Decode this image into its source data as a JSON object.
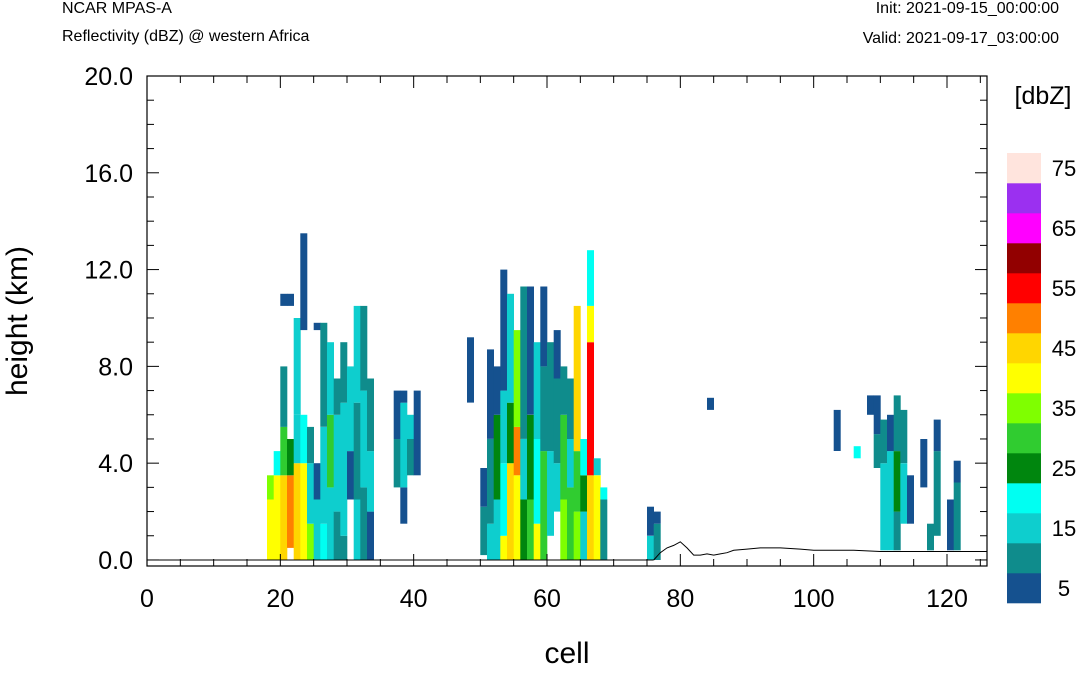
{
  "header": {
    "model": "NCAR MPAS-A",
    "field": "Reflectivity (dBZ) @ western Africa",
    "init": "Init: 2021-09-15_00:00:00",
    "valid": "Valid: 2021-09-17_03:00:00"
  },
  "chart_data": {
    "type": "heatmap",
    "xlabel": "cell",
    "ylabel": "height (km)",
    "xlim": [
      0,
      126
    ],
    "ylim": [
      -0.25,
      20.0
    ],
    "xticks": [
      "0",
      "20",
      "40",
      "60",
      "80",
      "100",
      "120"
    ],
    "yticks": [
      "0.0",
      "4.0",
      "8.0",
      "12.0",
      "16.0",
      "20.0"
    ],
    "colorbar": {
      "title": "[dbZ]",
      "labels": [
        "5",
        "15",
        "25",
        "35",
        "45",
        "55",
        "65",
        "75"
      ],
      "bins": [
        {
          "min": 0,
          "max": 10,
          "color": "#15518F"
        },
        {
          "min": 10,
          "max": 15,
          "color": "#0F8C8C"
        },
        {
          "min": 15,
          "max": 20,
          "color": "#0ECECE"
        },
        {
          "min": 20,
          "max": 25,
          "color": "#00FFF2"
        },
        {
          "min": 25,
          "max": 30,
          "color": "#00860E"
        },
        {
          "min": 30,
          "max": 35,
          "color": "#30CC30"
        },
        {
          "min": 35,
          "max": 40,
          "color": "#7FFF00"
        },
        {
          "min": 40,
          "max": 45,
          "color": "#FFFF00"
        },
        {
          "min": 45,
          "max": 50,
          "color": "#FFD600"
        },
        {
          "min": 50,
          "max": 55,
          "color": "#FF8000"
        },
        {
          "min": 55,
          "max": 60,
          "color": "#FF0000"
        },
        {
          "min": 60,
          "max": 65,
          "color": "#920000"
        },
        {
          "min": 65,
          "max": 70,
          "color": "#FF00FF"
        },
        {
          "min": 70,
          "max": 75,
          "color": "#9B30F0"
        },
        {
          "min": 75,
          "max": 80,
          "color": "#FFE4DD"
        }
      ]
    },
    "cell_height_km": 0.5,
    "columns": [
      {
        "cell": 18,
        "values": [
          {
            "z0": 0,
            "z1": 2.5,
            "dbz": 42
          },
          {
            "z0": 2.5,
            "z1": 3.5,
            "dbz": 37
          }
        ]
      },
      {
        "cell": 19,
        "values": [
          {
            "z0": 0,
            "z1": 3.5,
            "dbz": 43
          },
          {
            "z0": 3.5,
            "z1": 4.5,
            "dbz": 22
          }
        ]
      },
      {
        "cell": 20,
        "values": [
          {
            "z0": 0,
            "z1": 3.5,
            "dbz": 47
          },
          {
            "z0": 3.5,
            "z1": 5.5,
            "dbz": 32
          },
          {
            "z0": 5.5,
            "z1": 8,
            "dbz": 12
          },
          {
            "z0": 10.5,
            "z1": 11,
            "dbz": 7
          }
        ]
      },
      {
        "cell": 21,
        "values": [
          {
            "z0": 0.5,
            "z1": 3.5,
            "dbz": 52
          },
          {
            "z0": 3.5,
            "z1": 5,
            "dbz": 27
          },
          {
            "z0": 10.5,
            "z1": 11,
            "dbz": 7
          }
        ]
      },
      {
        "cell": 22,
        "values": [
          {
            "z0": 0,
            "z1": 4,
            "dbz": 47
          },
          {
            "z0": 4,
            "z1": 6,
            "dbz": 17
          },
          {
            "z0": 6,
            "z1": 10,
            "dbz": 17
          }
        ]
      },
      {
        "cell": 23,
        "values": [
          {
            "z0": 0,
            "z1": 4,
            "dbz": 42
          },
          {
            "z0": 4,
            "z1": 6,
            "dbz": 22
          },
          {
            "z0": 9.5,
            "z1": 13.5,
            "dbz": 8
          }
        ]
      },
      {
        "cell": 24,
        "values": [
          {
            "z0": 0,
            "z1": 1.5,
            "dbz": 37
          },
          {
            "z0": 1.5,
            "z1": 4,
            "dbz": 17
          },
          {
            "z0": 4,
            "z1": 5.5,
            "dbz": 12
          }
        ]
      },
      {
        "cell": 25,
        "values": [
          {
            "z0": 0,
            "z1": 2.5,
            "dbz": 17
          },
          {
            "z0": 2.5,
            "z1": 4,
            "dbz": 8
          },
          {
            "z0": 9.5,
            "z1": 9.8,
            "dbz": 7
          }
        ]
      },
      {
        "cell": 26,
        "values": [
          {
            "z0": 0,
            "z1": 1.5,
            "dbz": 22
          },
          {
            "z0": 1.5,
            "z1": 5.5,
            "dbz": 17
          },
          {
            "z0": 5.5,
            "z1": 9.8,
            "dbz": 12
          }
        ]
      },
      {
        "cell": 27,
        "values": [
          {
            "z0": 0,
            "z1": 3,
            "dbz": 17
          },
          {
            "z0": 3,
            "z1": 6,
            "dbz": 32
          },
          {
            "z0": 6,
            "z1": 9,
            "dbz": 17
          }
        ]
      },
      {
        "cell": 28,
        "values": [
          {
            "z0": 0,
            "z1": 2,
            "dbz": 12
          },
          {
            "z0": 2,
            "z1": 6,
            "dbz": 17
          },
          {
            "z0": 6,
            "z1": 7.5,
            "dbz": 12
          }
        ]
      },
      {
        "cell": 29,
        "values": [
          {
            "z0": 0,
            "z1": 1,
            "dbz": 12
          },
          {
            "z0": 1,
            "z1": 6.5,
            "dbz": 17
          },
          {
            "z0": 6.5,
            "z1": 9,
            "dbz": 12
          }
        ]
      },
      {
        "cell": 30,
        "values": [
          {
            "z0": 2.5,
            "z1": 4.5,
            "dbz": 8
          },
          {
            "z0": 4.5,
            "z1": 8,
            "dbz": 17
          }
        ]
      },
      {
        "cell": 31,
        "values": [
          {
            "z0": 0,
            "z1": 2.5,
            "dbz": 17
          },
          {
            "z0": 2.5,
            "z1": 6.5,
            "dbz": 12
          },
          {
            "z0": 6.5,
            "z1": 10.5,
            "dbz": 17
          }
        ]
      },
      {
        "cell": 32,
        "values": [
          {
            "z0": 0,
            "z1": 3,
            "dbz": 12
          },
          {
            "z0": 3,
            "z1": 7,
            "dbz": 17
          },
          {
            "z0": 7,
            "z1": 10.5,
            "dbz": 12
          }
        ]
      },
      {
        "cell": 33,
        "values": [
          {
            "z0": 0,
            "z1": 2,
            "dbz": 8
          },
          {
            "z0": 2,
            "z1": 4.5,
            "dbz": 17
          },
          {
            "z0": 4.5,
            "z1": 7.5,
            "dbz": 12
          }
        ]
      },
      {
        "cell": 37,
        "values": [
          {
            "z0": 3,
            "z1": 5,
            "dbz": 12
          },
          {
            "z0": 5,
            "z1": 7,
            "dbz": 8
          }
        ]
      },
      {
        "cell": 38,
        "values": [
          {
            "z0": 1.5,
            "z1": 3,
            "dbz": 8
          },
          {
            "z0": 3,
            "z1": 6.5,
            "dbz": 17
          },
          {
            "z0": 6.5,
            "z1": 7,
            "dbz": 8
          }
        ]
      },
      {
        "cell": 39,
        "values": [
          {
            "z0": 3.5,
            "z1": 5,
            "dbz": 12
          },
          {
            "z0": 5,
            "z1": 6,
            "dbz": 17
          }
        ]
      },
      {
        "cell": 40,
        "values": [
          {
            "z0": 3.5,
            "z1": 7,
            "dbz": 8
          }
        ]
      },
      {
        "cell": 48,
        "values": [
          {
            "z0": 6.5,
            "z1": 9.2,
            "dbz": 8
          }
        ]
      },
      {
        "cell": 49,
        "values": []
      },
      {
        "cell": 50,
        "values": [
          {
            "z0": 0.2,
            "z1": 2.2,
            "dbz": 12
          },
          {
            "z0": 2.2,
            "z1": 3.8,
            "dbz": 8
          }
        ]
      },
      {
        "cell": 51,
        "values": [
          {
            "z0": 0,
            "z1": 1.5,
            "dbz": 17
          },
          {
            "z0": 1.5,
            "z1": 5,
            "dbz": 12
          },
          {
            "z0": 5,
            "z1": 8.7,
            "dbz": 8
          }
        ]
      },
      {
        "cell": 52,
        "values": [
          {
            "z0": 0,
            "z1": 2.5,
            "dbz": 17
          },
          {
            "z0": 2.5,
            "z1": 6,
            "dbz": 27
          },
          {
            "z0": 6,
            "z1": 8,
            "dbz": 8
          }
        ]
      },
      {
        "cell": 53,
        "values": [
          {
            "z0": 0,
            "z1": 1,
            "dbz": 42
          },
          {
            "z0": 1,
            "z1": 4,
            "dbz": 22
          },
          {
            "z0": 4,
            "z1": 7,
            "dbz": 17
          },
          {
            "z0": 7,
            "z1": 12,
            "dbz": 8
          }
        ]
      },
      {
        "cell": 54,
        "values": [
          {
            "z0": 0,
            "z1": 4,
            "dbz": 47
          },
          {
            "z0": 4,
            "z1": 6.5,
            "dbz": 27
          },
          {
            "z0": 6.5,
            "z1": 11,
            "dbz": 17
          }
        ]
      },
      {
        "cell": 55,
        "values": [
          {
            "z0": 0,
            "z1": 3.5,
            "dbz": 42
          },
          {
            "z0": 3.5,
            "z1": 5.5,
            "dbz": 52
          },
          {
            "z0": 5.5,
            "z1": 9.5,
            "dbz": 37
          }
        ]
      },
      {
        "cell": 56,
        "values": [
          {
            "z0": 0,
            "z1": 2.5,
            "dbz": 27
          },
          {
            "z0": 2.5,
            "z1": 5,
            "dbz": 17
          },
          {
            "z0": 5,
            "z1": 11.3,
            "dbz": 12
          }
        ]
      },
      {
        "cell": 57,
        "values": [
          {
            "z0": 0,
            "z1": 2.5,
            "dbz": 32
          },
          {
            "z0": 2.5,
            "z1": 6,
            "dbz": 27
          },
          {
            "z0": 6,
            "z1": 11.3,
            "dbz": 8
          }
        ]
      },
      {
        "cell": 58,
        "values": [
          {
            "z0": 0,
            "z1": 1.5,
            "dbz": 42
          },
          {
            "z0": 1.5,
            "z1": 5,
            "dbz": 22
          },
          {
            "z0": 5,
            "z1": 9,
            "dbz": 17
          }
        ]
      },
      {
        "cell": 59,
        "values": [
          {
            "z0": 0,
            "z1": 4.5,
            "dbz": 32
          },
          {
            "z0": 4.5,
            "z1": 8,
            "dbz": 12
          },
          {
            "z0": 8,
            "z1": 11.3,
            "dbz": 8
          }
        ]
      },
      {
        "cell": 60,
        "values": [
          {
            "z0": 1,
            "z1": 4.5,
            "dbz": 17
          },
          {
            "z0": 4.5,
            "z1": 9,
            "dbz": 12
          }
        ]
      },
      {
        "cell": 61,
        "values": [
          {
            "z0": 2,
            "z1": 4,
            "dbz": 17
          },
          {
            "z0": 4,
            "z1": 7.5,
            "dbz": 12
          },
          {
            "z0": 7.5,
            "z1": 9.5,
            "dbz": 8
          }
        ]
      },
      {
        "cell": 62,
        "values": [
          {
            "z0": 0,
            "z1": 2.5,
            "dbz": 37
          },
          {
            "z0": 2.5,
            "z1": 6,
            "dbz": 32
          },
          {
            "z0": 6,
            "z1": 8,
            "dbz": 12
          }
        ]
      },
      {
        "cell": 63,
        "values": [
          {
            "z0": 0,
            "z1": 3,
            "dbz": 32
          },
          {
            "z0": 3,
            "z1": 5,
            "dbz": 17
          },
          {
            "z0": 5,
            "z1": 7.5,
            "dbz": 12
          }
        ]
      },
      {
        "cell": 64,
        "values": [
          {
            "z0": 0,
            "z1": 2,
            "dbz": 37
          },
          {
            "z0": 2,
            "z1": 4.5,
            "dbz": 32
          },
          {
            "z0": 4.5,
            "z1": 10.5,
            "dbz": 47
          }
        ]
      },
      {
        "cell": 65,
        "values": [
          {
            "z0": 0,
            "z1": 2,
            "dbz": 17
          },
          {
            "z0": 2,
            "z1": 3.5,
            "dbz": 27
          },
          {
            "z0": 3.5,
            "z1": 5,
            "dbz": 22
          }
        ]
      },
      {
        "cell": 66,
        "values": [
          {
            "z0": 0,
            "z1": 3.5,
            "dbz": 47
          },
          {
            "z0": 3.5,
            "z1": 9,
            "dbz": 57
          },
          {
            "z0": 9,
            "z1": 10.5,
            "dbz": 42
          },
          {
            "z0": 10.5,
            "z1": 12.8,
            "dbz": 22
          }
        ]
      },
      {
        "cell": 67,
        "values": [
          {
            "z0": 0,
            "z1": 3.5,
            "dbz": 42
          },
          {
            "z0": 3.5,
            "z1": 4.2,
            "dbz": 17
          }
        ]
      },
      {
        "cell": 68,
        "values": [
          {
            "z0": 0,
            "z1": 2.5,
            "dbz": 12
          },
          {
            "z0": 2.5,
            "z1": 3,
            "dbz": 22
          }
        ]
      },
      {
        "cell": 75,
        "values": [
          {
            "z0": 0,
            "z1": 1,
            "dbz": 17
          },
          {
            "z0": 1,
            "z1": 2.2,
            "dbz": 8
          }
        ]
      },
      {
        "cell": 76,
        "values": [
          {
            "z0": 0,
            "z1": 1.5,
            "dbz": 12
          },
          {
            "z0": 1.5,
            "z1": 2,
            "dbz": 8
          }
        ]
      },
      {
        "cell": 84,
        "values": [
          {
            "z0": 6.2,
            "z1": 6.7,
            "dbz": 8
          }
        ]
      },
      {
        "cell": 103,
        "values": [
          {
            "z0": 4.5,
            "z1": 6.2,
            "dbz": 8
          }
        ]
      },
      {
        "cell": 106,
        "values": [
          {
            "z0": 4.2,
            "z1": 4.7,
            "dbz": 22
          }
        ]
      },
      {
        "cell": 108,
        "values": [
          {
            "z0": 6,
            "z1": 6.8,
            "dbz": 8
          }
        ]
      },
      {
        "cell": 109,
        "values": [
          {
            "z0": 3.8,
            "z1": 5.2,
            "dbz": 12
          },
          {
            "z0": 5.2,
            "z1": 6.8,
            "dbz": 8
          }
        ]
      },
      {
        "cell": 110,
        "values": [
          {
            "z0": 0.4,
            "z1": 4,
            "dbz": 17
          },
          {
            "z0": 4,
            "z1": 5.8,
            "dbz": 12
          }
        ]
      },
      {
        "cell": 111,
        "values": [
          {
            "z0": 0.4,
            "z1": 4.5,
            "dbz": 17
          },
          {
            "z0": 4.5,
            "z1": 6,
            "dbz": 8
          }
        ]
      },
      {
        "cell": 112,
        "values": [
          {
            "z0": 0.4,
            "z1": 2,
            "dbz": 12
          },
          {
            "z0": 2,
            "z1": 4.5,
            "dbz": 27
          },
          {
            "z0": 4.5,
            "z1": 6.8,
            "dbz": 12
          }
        ]
      },
      {
        "cell": 113,
        "values": [
          {
            "z0": 1.5,
            "z1": 4,
            "dbz": 17
          },
          {
            "z0": 4,
            "z1": 6.2,
            "dbz": 12
          }
        ]
      },
      {
        "cell": 114,
        "values": [
          {
            "z0": 1.5,
            "z1": 3.5,
            "dbz": 8
          }
        ]
      },
      {
        "cell": 116,
        "values": [
          {
            "z0": 3,
            "z1": 5,
            "dbz": 8
          }
        ]
      },
      {
        "cell": 117,
        "values": [
          {
            "z0": 0.4,
            "z1": 1.5,
            "dbz": 12
          }
        ]
      },
      {
        "cell": 118,
        "values": [
          {
            "z0": 1,
            "z1": 4.5,
            "dbz": 12
          },
          {
            "z0": 4.5,
            "z1": 5.8,
            "dbz": 8
          }
        ]
      },
      {
        "cell": 120,
        "values": [
          {
            "z0": 0.4,
            "z1": 2.5,
            "dbz": 8
          }
        ]
      },
      {
        "cell": 121,
        "values": [
          {
            "z0": 0.4,
            "z1": 3.2,
            "dbz": 12
          },
          {
            "z0": 3.2,
            "z1": 4.1,
            "dbz": 8
          }
        ]
      }
    ],
    "terrain_km": [
      [
        76,
        0
      ],
      [
        77,
        0.3
      ],
      [
        78,
        0.5
      ],
      [
        79,
        0.6
      ],
      [
        80,
        0.75
      ],
      [
        81,
        0.5
      ],
      [
        82,
        0.2
      ],
      [
        83,
        0.2
      ],
      [
        84,
        0.25
      ],
      [
        85,
        0.2
      ],
      [
        86,
        0.25
      ],
      [
        87,
        0.3
      ],
      [
        88,
        0.4
      ],
      [
        90,
        0.45
      ],
      [
        92,
        0.5
      ],
      [
        95,
        0.5
      ],
      [
        98,
        0.45
      ],
      [
        100,
        0.4
      ],
      [
        103,
        0.4
      ],
      [
        106,
        0.4
      ],
      [
        110,
        0.35
      ],
      [
        115,
        0.35
      ],
      [
        120,
        0.35
      ],
      [
        126,
        0.35
      ]
    ]
  }
}
